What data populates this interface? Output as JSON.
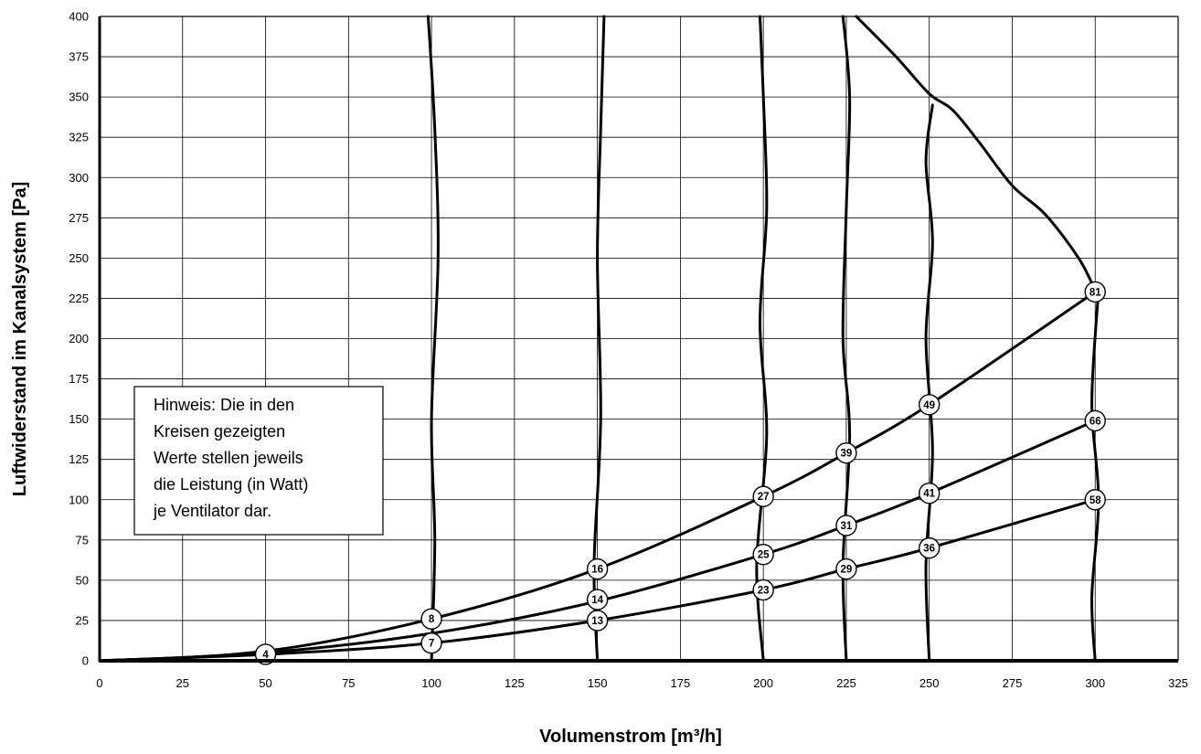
{
  "chart_data": {
    "type": "line",
    "xlabel": "Volumenstrom [m³/h]",
    "ylabel": "Luftwiderstand im Kanalsystem [Pa]",
    "xlim": [
      0,
      325
    ],
    "ylim": [
      0,
      400
    ],
    "x_ticks": [
      "0",
      "25",
      "50",
      "75",
      "100",
      "125",
      "150",
      "175",
      "200",
      "225",
      "250",
      "275",
      "300",
      "325"
    ],
    "y_ticks": [
      "0",
      "25",
      "50",
      "75",
      "100",
      "125",
      "150",
      "175",
      "200",
      "225",
      "250",
      "275",
      "300",
      "325",
      "350",
      "375",
      "400"
    ],
    "grid": true,
    "system_curves": [
      {
        "points": [
          [
            0,
            0
          ],
          [
            50,
            6
          ],
          [
            100,
            26
          ],
          [
            150,
            57
          ],
          [
            200,
            102
          ],
          [
            225,
            129
          ],
          [
            250,
            159
          ],
          [
            300,
            229
          ]
        ]
      },
      {
        "points": [
          [
            0,
            0
          ],
          [
            50,
            5
          ],
          [
            100,
            17
          ],
          [
            150,
            37
          ],
          [
            200,
            66
          ],
          [
            225,
            84
          ],
          [
            250,
            104
          ],
          [
            300,
            149
          ]
        ]
      },
      {
        "points": [
          [
            0,
            0
          ],
          [
            50,
            4
          ],
          [
            100,
            11
          ],
          [
            150,
            25
          ],
          [
            200,
            44
          ],
          [
            225,
            57
          ],
          [
            250,
            70
          ],
          [
            300,
            100
          ]
        ]
      }
    ],
    "fan_curves": [
      {
        "points": [
          [
            100,
            0
          ],
          [
            101,
            75
          ],
          [
            100,
            150
          ],
          [
            102,
            250
          ],
          [
            101,
            330
          ],
          [
            99,
            400
          ]
        ]
      },
      {
        "points": [
          [
            150,
            0
          ],
          [
            149,
            60
          ],
          [
            151,
            150
          ],
          [
            150,
            250
          ],
          [
            151,
            330
          ],
          [
            152,
            400
          ]
        ]
      },
      {
        "points": [
          [
            200,
            0
          ],
          [
            198,
            60
          ],
          [
            201,
            140
          ],
          [
            199,
            210
          ],
          [
            201,
            280
          ],
          [
            200,
            350
          ],
          [
            199,
            400
          ]
        ]
      },
      {
        "points": [
          [
            225,
            0
          ],
          [
            224,
            60
          ],
          [
            226,
            140
          ],
          [
            224,
            200
          ],
          [
            225,
            280
          ],
          [
            226,
            350
          ],
          [
            224,
            400
          ]
        ]
      },
      {
        "points": [
          [
            250,
            0
          ],
          [
            249,
            60
          ],
          [
            251,
            130
          ],
          [
            249,
            200
          ],
          [
            251,
            260
          ],
          [
            249,
            310
          ],
          [
            251,
            345
          ]
        ]
      },
      {
        "points": [
          [
            300,
            0
          ],
          [
            299,
            40
          ],
          [
            301,
            100
          ],
          [
            299,
            160
          ],
          [
            301,
            230
          ]
        ]
      }
    ],
    "upper_limit_curve": {
      "points": [
        [
          228,
          400
        ],
        [
          240,
          375
        ],
        [
          250,
          352
        ],
        [
          257,
          342
        ],
        [
          265,
          322
        ],
        [
          275,
          295
        ],
        [
          285,
          277
        ],
        [
          295,
          250
        ],
        [
          300,
          230
        ]
      ]
    },
    "markers": [
      {
        "x": 50,
        "y": 4,
        "label": "4"
      },
      {
        "x": 100,
        "y": 11,
        "label": "7"
      },
      {
        "x": 100,
        "y": 26,
        "label": "8"
      },
      {
        "x": 150,
        "y": 25,
        "label": "13"
      },
      {
        "x": 150,
        "y": 38,
        "label": "14"
      },
      {
        "x": 150,
        "y": 57,
        "label": "16"
      },
      {
        "x": 200,
        "y": 44,
        "label": "23"
      },
      {
        "x": 200,
        "y": 66,
        "label": "25"
      },
      {
        "x": 200,
        "y": 102,
        "label": "27"
      },
      {
        "x": 225,
        "y": 57,
        "label": "29"
      },
      {
        "x": 225,
        "y": 84,
        "label": "31"
      },
      {
        "x": 225,
        "y": 129,
        "label": "39"
      },
      {
        "x": 250,
        "y": 70,
        "label": "36"
      },
      {
        "x": 250,
        "y": 104,
        "label": "41"
      },
      {
        "x": 250,
        "y": 159,
        "label": "49"
      },
      {
        "x": 300,
        "y": 100,
        "label": "58"
      },
      {
        "x": 300,
        "y": 149,
        "label": "66"
      },
      {
        "x": 300,
        "y": 229,
        "label": "81"
      }
    ],
    "annotation": {
      "lines": [
        "Hinweis: Die in den",
        "Kreisen gezeigten",
        "Werte stellen jeweils",
        "die Leistung (in Watt)",
        "je Ventilator dar."
      ]
    }
  }
}
